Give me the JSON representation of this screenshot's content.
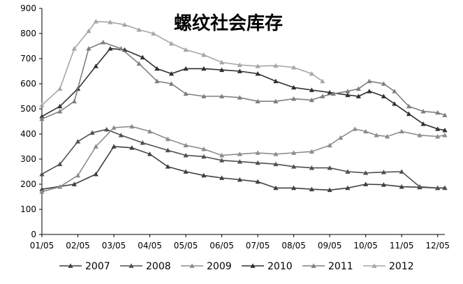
{
  "chart_data": {
    "type": "line",
    "title": "螺纹社会库存",
    "xlabel": "",
    "ylabel": "",
    "ylim": [
      0,
      900
    ],
    "yticks": [
      0,
      100,
      200,
      300,
      400,
      500,
      600,
      700,
      800,
      900
    ],
    "xlim": [
      0,
      11.2
    ],
    "xtick_labels": [
      "01/05",
      "02/05",
      "03/05",
      "04/05",
      "05/05",
      "06/05",
      "07/05",
      "08/05",
      "09/05",
      "10/05",
      "11/05",
      "12/05"
    ],
    "grid": false,
    "legend_position": "bottom",
    "series": [
      {
        "name": "2007",
        "color": "#404040",
        "marker": "triangle",
        "x": [
          0,
          0.9,
          1.5,
          2.0,
          2.5,
          3.0,
          3.5,
          4.0,
          4.5,
          5.0,
          5.5,
          6.0,
          6.5,
          7.0,
          7.5,
          8.0,
          8.5,
          9.0,
          9.5,
          10.0,
          10.5,
          11.0,
          11.2
        ],
        "values": [
          180,
          200,
          240,
          350,
          345,
          320,
          270,
          250,
          235,
          225,
          218,
          210,
          185,
          185,
          180,
          177,
          185,
          200,
          198,
          190,
          188,
          185,
          186
        ]
      },
      {
        "name": "2008",
        "color": "#505050",
        "marker": "triangle",
        "x": [
          0,
          0.5,
          1.0,
          1.4,
          1.8,
          2.2,
          2.8,
          3.5,
          4.0,
          4.5,
          5.0,
          5.5,
          6.0,
          6.5,
          7.0,
          7.5,
          8.0,
          8.5,
          9.0,
          9.5,
          10.0,
          10.5,
          11.0,
          11.2
        ],
        "values": [
          240,
          280,
          370,
          405,
          418,
          395,
          365,
          335,
          315,
          310,
          295,
          290,
          285,
          280,
          270,
          265,
          265,
          250,
          245,
          248,
          250,
          190,
          185,
          185
        ]
      },
      {
        "name": "2009",
        "color": "#8c8c8c",
        "marker": "triangle",
        "x": [
          0,
          0.5,
          1.0,
          1.5,
          2.0,
          2.5,
          3.0,
          3.5,
          4.0,
          4.5,
          5.0,
          5.5,
          6.0,
          6.5,
          7.0,
          7.5,
          8.0,
          8.3,
          8.7,
          9.0,
          9.3,
          9.6,
          10.0,
          10.5,
          11.0,
          11.2
        ],
        "values": [
          170,
          190,
          235,
          350,
          425,
          430,
          410,
          380,
          355,
          340,
          315,
          320,
          325,
          320,
          325,
          330,
          355,
          385,
          420,
          410,
          395,
          390,
          410,
          395,
          390,
          395
        ]
      },
      {
        "name": "2010",
        "color": "#303030",
        "marker": "triangle",
        "x": [
          0,
          0.5,
          1.0,
          1.5,
          1.9,
          2.3,
          2.8,
          3.2,
          3.6,
          4.0,
          4.5,
          5.0,
          5.5,
          6.0,
          6.5,
          7.0,
          7.5,
          8.0,
          8.5,
          8.8,
          9.1,
          9.5,
          9.8,
          10.2,
          10.6,
          11.0,
          11.2
        ],
        "values": [
          470,
          510,
          580,
          670,
          740,
          735,
          705,
          660,
          640,
          660,
          660,
          655,
          650,
          640,
          610,
          585,
          575,
          565,
          555,
          550,
          570,
          550,
          520,
          480,
          440,
          420,
          415
        ]
      },
      {
        "name": "2011",
        "color": "#7f7f7f",
        "marker": "triangle",
        "x": [
          0,
          0.5,
          0.9,
          1.3,
          1.7,
          2.2,
          2.7,
          3.2,
          3.6,
          4.0,
          4.5,
          5.0,
          5.5,
          6.0,
          6.5,
          7.0,
          7.5,
          7.8,
          8.1,
          8.5,
          8.8,
          9.1,
          9.5,
          9.8,
          10.2,
          10.6,
          11.0,
          11.2
        ],
        "values": [
          460,
          490,
          530,
          740,
          765,
          740,
          680,
          610,
          600,
          560,
          550,
          550,
          545,
          530,
          530,
          540,
          535,
          550,
          560,
          570,
          580,
          610,
          600,
          570,
          510,
          490,
          485,
          475
        ]
      },
      {
        "name": "2012",
        "color": "#a6a6a6",
        "marker": "triangle",
        "x": [
          0,
          0.5,
          0.9,
          1.3,
          1.5,
          1.9,
          2.3,
          2.7,
          3.1,
          3.6,
          4.0,
          4.5,
          5.0,
          5.5,
          6.0,
          6.5,
          7.0,
          7.5,
          7.8
        ],
        "values": [
          515,
          580,
          740,
          810,
          848,
          845,
          835,
          815,
          800,
          760,
          735,
          715,
          685,
          675,
          670,
          672,
          665,
          640,
          610
        ]
      }
    ]
  }
}
